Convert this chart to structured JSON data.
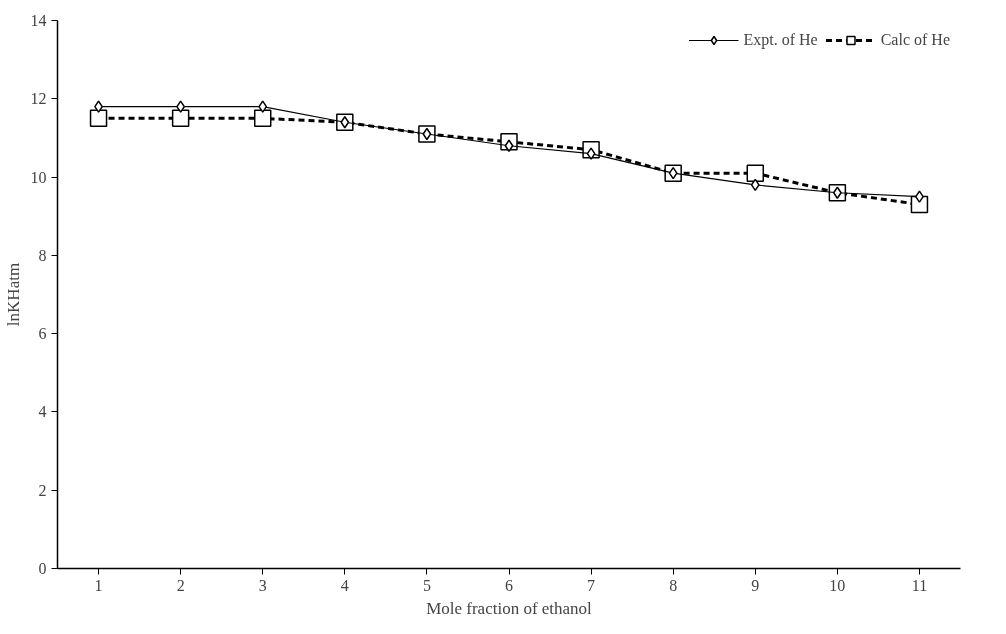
{
  "chart_data": {
    "type": "line",
    "xlabel": "Mole fraction of ethanol",
    "ylabel": "lnKHatm",
    "categories": [
      "1",
      "2",
      "3",
      "4",
      "5",
      "6",
      "7",
      "8",
      "9",
      "10",
      "11"
    ],
    "series": [
      {
        "name": "Expt. of He",
        "color": "#000000",
        "marker": "diamond",
        "line_style": "solid",
        "values": [
          11.8,
          11.8,
          11.8,
          11.4,
          11.1,
          10.8,
          10.6,
          10.1,
          9.8,
          9.6,
          9.5
        ]
      },
      {
        "name": "Calc of He",
        "color": "#000000",
        "marker": "square",
        "line_style": "dashed",
        "values": [
          11.5,
          11.5,
          11.5,
          11.4,
          11.1,
          10.9,
          10.7,
          10.1,
          10.1,
          9.6,
          9.3
        ]
      }
    ],
    "ylim": [
      0,
      14
    ],
    "yticks": [
      0,
      2,
      4,
      6,
      8,
      10,
      12,
      14
    ],
    "grid": false,
    "legend": "top right"
  }
}
